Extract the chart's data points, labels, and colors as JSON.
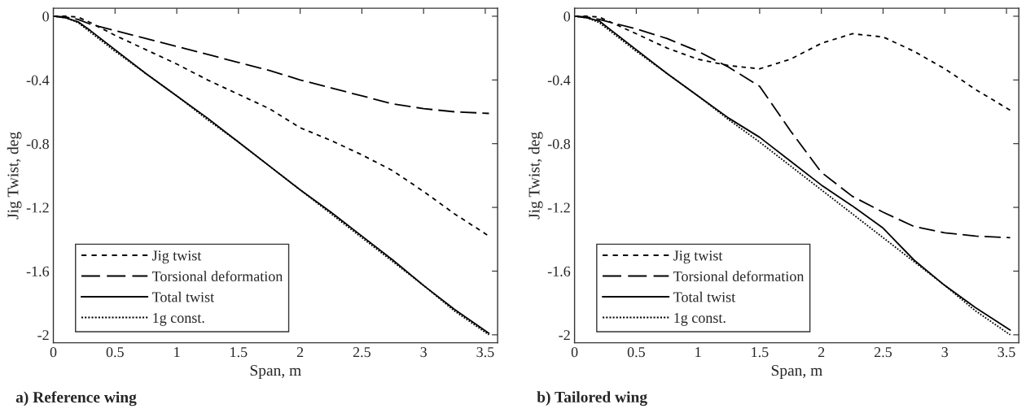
{
  "chart_data": [
    {
      "type": "line",
      "xlabel": "Span, m",
      "ylabel": "Jig Twist, deg",
      "annotations": [
        "a) Reference wing"
      ],
      "xlim": [
        0,
        3.6
      ],
      "ylim": [
        -2.05,
        0.05
      ],
      "xticks": [
        0,
        0.5,
        1,
        1.5,
        2,
        2.5,
        3,
        3.5
      ],
      "yticks": [
        0,
        -0.4,
        -0.8,
        -1.2,
        -1.6,
        -2
      ],
      "grid": false,
      "legend": "bottom left",
      "x": [
        0,
        0.1,
        0.2,
        0.3,
        0.5,
        0.75,
        1,
        1.25,
        1.5,
        1.75,
        2,
        2.25,
        2.5,
        2.75,
        3,
        3.25,
        3.53
      ],
      "series": [
        {
          "name": "Jig twist",
          "color": "#000000",
          "line_style": "dashed",
          "values": [
            0,
            0,
            -0.005,
            -0.04,
            -0.12,
            -0.21,
            -0.3,
            -0.4,
            -0.49,
            -0.58,
            -0.7,
            -0.78,
            -0.87,
            -0.97,
            -1.1,
            -1.24,
            -1.38
          ]
        },
        {
          "name": "Torsional deformation",
          "color": "#000000",
          "line_style": "dashed",
          "values": [
            0,
            -0.005,
            -0.02,
            -0.05,
            -0.09,
            -0.14,
            -0.19,
            -0.24,
            -0.29,
            -0.34,
            -0.4,
            -0.45,
            -0.5,
            -0.55,
            -0.58,
            -0.6,
            -0.61
          ]
        },
        {
          "name": "Total twist",
          "color": "#000000",
          "line_style": "solid",
          "values": [
            0,
            -0.01,
            -0.035,
            -0.09,
            -0.21,
            -0.36,
            -0.5,
            -0.64,
            -0.79,
            -0.94,
            -1.09,
            -1.23,
            -1.38,
            -1.53,
            -1.69,
            -1.84,
            -1.99
          ]
        },
        {
          "name": "1g const.",
          "color": "#000000",
          "line_style": "dotted",
          "values": [
            0,
            -0.01,
            -0.04,
            -0.1,
            -0.22,
            -0.36,
            -0.5,
            -0.65,
            -0.79,
            -0.94,
            -1.09,
            -1.24,
            -1.39,
            -1.54,
            -1.69,
            -1.85,
            -2.0
          ]
        }
      ]
    },
    {
      "type": "line",
      "xlabel": "Span, m",
      "ylabel": "Jig Twist, deg",
      "annotations": [
        "b) Tailored wing"
      ],
      "xlim": [
        0,
        3.6
      ],
      "ylim": [
        -2.05,
        0.05
      ],
      "xticks": [
        0,
        0.5,
        1,
        1.5,
        2,
        2.5,
        3,
        3.5
      ],
      "yticks": [
        0,
        -0.4,
        -0.8,
        -1.2,
        -1.6,
        -2
      ],
      "grid": false,
      "legend": "bottom left",
      "x": [
        0,
        0.1,
        0.2,
        0.3,
        0.5,
        0.75,
        1,
        1.25,
        1.5,
        1.75,
        2,
        2.25,
        2.5,
        2.75,
        3,
        3.25,
        3.53
      ],
      "series": [
        {
          "name": "Jig twist",
          "color": "#000000",
          "line_style": "dashed",
          "values": [
            0,
            0,
            -0.005,
            -0.04,
            -0.11,
            -0.2,
            -0.27,
            -0.31,
            -0.33,
            -0.27,
            -0.17,
            -0.11,
            -0.13,
            -0.22,
            -0.33,
            -0.46,
            -0.59
          ]
        },
        {
          "name": "Torsional deformation",
          "color": "#000000",
          "line_style": "dashed",
          "values": [
            0,
            -0.005,
            -0.02,
            -0.04,
            -0.08,
            -0.14,
            -0.22,
            -0.32,
            -0.44,
            -0.72,
            -0.98,
            -1.13,
            -1.23,
            -1.32,
            -1.36,
            -1.38,
            -1.39
          ]
        },
        {
          "name": "Total twist",
          "color": "#000000",
          "line_style": "solid",
          "values": [
            0,
            -0.01,
            -0.03,
            -0.09,
            -0.21,
            -0.36,
            -0.5,
            -0.64,
            -0.76,
            -0.91,
            -1.06,
            -1.19,
            -1.33,
            -1.53,
            -1.69,
            -1.83,
            -1.97
          ]
        },
        {
          "name": "1g const.",
          "color": "#000000",
          "line_style": "dotted",
          "values": [
            0,
            -0.01,
            -0.04,
            -0.1,
            -0.22,
            -0.36,
            -0.5,
            -0.65,
            -0.79,
            -0.94,
            -1.09,
            -1.24,
            -1.39,
            -1.54,
            -1.69,
            -1.85,
            -2.0
          ]
        }
      ]
    }
  ]
}
